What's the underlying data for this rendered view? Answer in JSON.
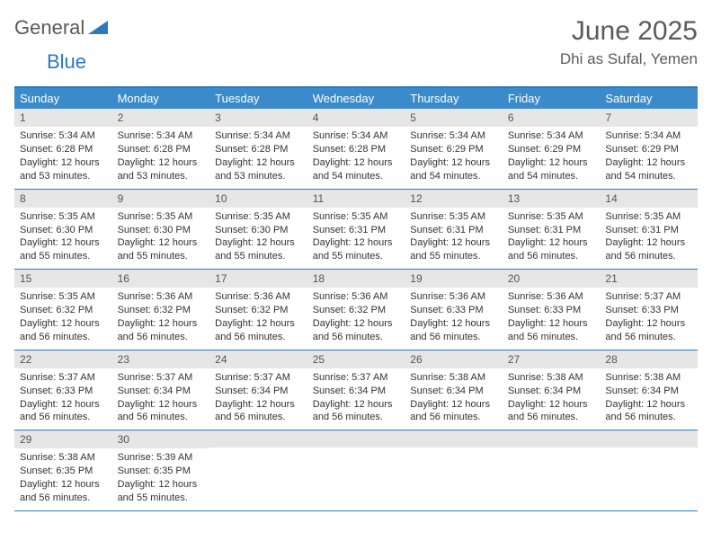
{
  "logo": {
    "word1": "General",
    "word2": "Blue"
  },
  "title": "June 2025",
  "location": "Dhi as Sufal, Yemen",
  "colors": {
    "accent": "#2a7abf",
    "header_bg": "#3b8bca",
    "daynum_bg": "#e6e6e6",
    "text": "#333333",
    "muted": "#5a5a5a"
  },
  "weekdays": [
    "Sunday",
    "Monday",
    "Tuesday",
    "Wednesday",
    "Thursday",
    "Friday",
    "Saturday"
  ],
  "weeks": [
    [
      {
        "n": "1",
        "sr": "5:34 AM",
        "ss": "6:28 PM",
        "dl": "12 hours and 53 minutes."
      },
      {
        "n": "2",
        "sr": "5:34 AM",
        "ss": "6:28 PM",
        "dl": "12 hours and 53 minutes."
      },
      {
        "n": "3",
        "sr": "5:34 AM",
        "ss": "6:28 PM",
        "dl": "12 hours and 53 minutes."
      },
      {
        "n": "4",
        "sr": "5:34 AM",
        "ss": "6:28 PM",
        "dl": "12 hours and 54 minutes."
      },
      {
        "n": "5",
        "sr": "5:34 AM",
        "ss": "6:29 PM",
        "dl": "12 hours and 54 minutes."
      },
      {
        "n": "6",
        "sr": "5:34 AM",
        "ss": "6:29 PM",
        "dl": "12 hours and 54 minutes."
      },
      {
        "n": "7",
        "sr": "5:34 AM",
        "ss": "6:29 PM",
        "dl": "12 hours and 54 minutes."
      }
    ],
    [
      {
        "n": "8",
        "sr": "5:35 AM",
        "ss": "6:30 PM",
        "dl": "12 hours and 55 minutes."
      },
      {
        "n": "9",
        "sr": "5:35 AM",
        "ss": "6:30 PM",
        "dl": "12 hours and 55 minutes."
      },
      {
        "n": "10",
        "sr": "5:35 AM",
        "ss": "6:30 PM",
        "dl": "12 hours and 55 minutes."
      },
      {
        "n": "11",
        "sr": "5:35 AM",
        "ss": "6:31 PM",
        "dl": "12 hours and 55 minutes."
      },
      {
        "n": "12",
        "sr": "5:35 AM",
        "ss": "6:31 PM",
        "dl": "12 hours and 55 minutes."
      },
      {
        "n": "13",
        "sr": "5:35 AM",
        "ss": "6:31 PM",
        "dl": "12 hours and 56 minutes."
      },
      {
        "n": "14",
        "sr": "5:35 AM",
        "ss": "6:31 PM",
        "dl": "12 hours and 56 minutes."
      }
    ],
    [
      {
        "n": "15",
        "sr": "5:35 AM",
        "ss": "6:32 PM",
        "dl": "12 hours and 56 minutes."
      },
      {
        "n": "16",
        "sr": "5:36 AM",
        "ss": "6:32 PM",
        "dl": "12 hours and 56 minutes."
      },
      {
        "n": "17",
        "sr": "5:36 AM",
        "ss": "6:32 PM",
        "dl": "12 hours and 56 minutes."
      },
      {
        "n": "18",
        "sr": "5:36 AM",
        "ss": "6:32 PM",
        "dl": "12 hours and 56 minutes."
      },
      {
        "n": "19",
        "sr": "5:36 AM",
        "ss": "6:33 PM",
        "dl": "12 hours and 56 minutes."
      },
      {
        "n": "20",
        "sr": "5:36 AM",
        "ss": "6:33 PM",
        "dl": "12 hours and 56 minutes."
      },
      {
        "n": "21",
        "sr": "5:37 AM",
        "ss": "6:33 PM",
        "dl": "12 hours and 56 minutes."
      }
    ],
    [
      {
        "n": "22",
        "sr": "5:37 AM",
        "ss": "6:33 PM",
        "dl": "12 hours and 56 minutes."
      },
      {
        "n": "23",
        "sr": "5:37 AM",
        "ss": "6:34 PM",
        "dl": "12 hours and 56 minutes."
      },
      {
        "n": "24",
        "sr": "5:37 AM",
        "ss": "6:34 PM",
        "dl": "12 hours and 56 minutes."
      },
      {
        "n": "25",
        "sr": "5:37 AM",
        "ss": "6:34 PM",
        "dl": "12 hours and 56 minutes."
      },
      {
        "n": "26",
        "sr": "5:38 AM",
        "ss": "6:34 PM",
        "dl": "12 hours and 56 minutes."
      },
      {
        "n": "27",
        "sr": "5:38 AM",
        "ss": "6:34 PM",
        "dl": "12 hours and 56 minutes."
      },
      {
        "n": "28",
        "sr": "5:38 AM",
        "ss": "6:34 PM",
        "dl": "12 hours and 56 minutes."
      }
    ],
    [
      {
        "n": "29",
        "sr": "5:38 AM",
        "ss": "6:35 PM",
        "dl": "12 hours and 56 minutes."
      },
      {
        "n": "30",
        "sr": "5:39 AM",
        "ss": "6:35 PM",
        "dl": "12 hours and 55 minutes."
      },
      null,
      null,
      null,
      null,
      null
    ]
  ],
  "labels": {
    "sunrise": "Sunrise: ",
    "sunset": "Sunset: ",
    "daylight": "Daylight: "
  }
}
